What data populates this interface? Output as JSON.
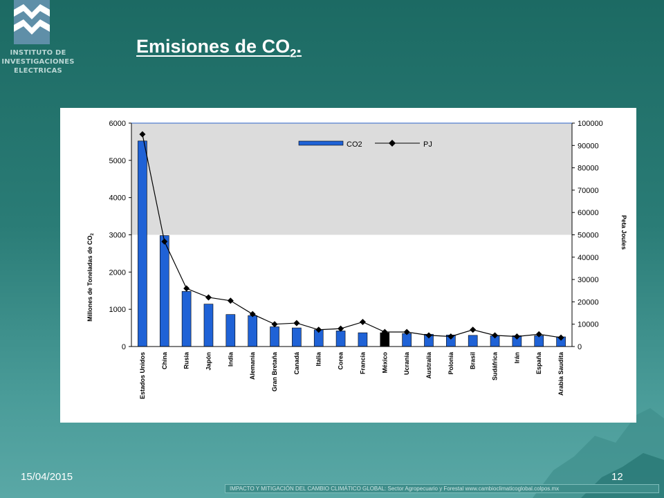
{
  "logo": {
    "line1": "INSTITUTO DE",
    "line2": "INVESTIGACIONES",
    "line3": "ELECTRICAS"
  },
  "slide": {
    "title_main": "Emisiones de CO",
    "title_sub": "2",
    "title_end": "."
  },
  "footer": {
    "date": "15/04/2015",
    "page": "12",
    "note": "IMPACTO Y MITIGACIÓN DEL CAMBIO CLIMÁTICO GLOBAL: Sector Agropecuario y Forestal www.cambioclimaticoglobal.colpos.mx"
  },
  "colors": {
    "bar": "#1f62d6",
    "bar_highlight": "#000000",
    "band": "#dcdcdc",
    "line": "#000000"
  },
  "chart_data": {
    "type": "bar",
    "categories": [
      "Estados Unidos",
      "China",
      "Rusia",
      "Japón",
      "India",
      "Alemania",
      "Gran Bretaña",
      "Canadá",
      "Italia",
      "Corea",
      "Francia",
      "México",
      "Ucrania",
      "Australia",
      "Polonia",
      "Brasil",
      "Sudáfrica",
      "Irán",
      "España",
      "Arabia Saudita"
    ],
    "highlight_category": "México",
    "series": [
      {
        "name": "CO2",
        "type": "bar",
        "axis": "left",
        "values": [
          5520,
          2980,
          1480,
          1140,
          860,
          830,
          530,
          500,
          450,
          420,
          370,
          370,
          350,
          330,
          310,
          300,
          290,
          290,
          290,
          260
        ]
      },
      {
        "name": "PJ",
        "type": "line",
        "axis": "right",
        "values": [
          95000,
          47000,
          26000,
          22000,
          20500,
          14500,
          10000,
          10500,
          7500,
          8000,
          11000,
          6500,
          6500,
          5000,
          4500,
          7500,
          5000,
          4500,
          5500,
          4000
        ]
      }
    ],
    "ylabel": "Millones de Toneladas de CO",
    "ylabel_sub": "2",
    "y2label": "Peta Joules",
    "ylim": [
      0,
      6000
    ],
    "y2lim": [
      0,
      100000
    ],
    "yticks": [
      0,
      1000,
      2000,
      3000,
      4000,
      5000,
      6000
    ],
    "y2ticks": [
      0,
      10000,
      20000,
      30000,
      40000,
      50000,
      60000,
      70000,
      80000,
      90000,
      100000
    ],
    "shaded_band_range": [
      3000,
      6000
    ],
    "legend_placement": "top-center",
    "grid": false
  }
}
